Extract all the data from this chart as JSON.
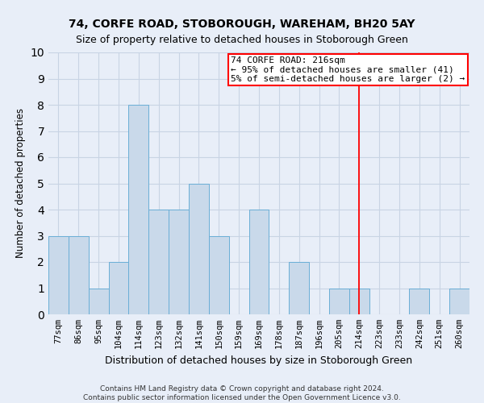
{
  "title1": "74, CORFE ROAD, STOBOROUGH, WAREHAM, BH20 5AY",
  "title2": "Size of property relative to detached houses in Stoborough Green",
  "xlabel": "Distribution of detached houses by size in Stoborough Green",
  "ylabel": "Number of detached properties",
  "categories": [
    "77sqm",
    "86sqm",
    "95sqm",
    "104sqm",
    "114sqm",
    "123sqm",
    "132sqm",
    "141sqm",
    "150sqm",
    "159sqm",
    "169sqm",
    "178sqm",
    "187sqm",
    "196sqm",
    "205sqm",
    "214sqm",
    "223sqm",
    "233sqm",
    "242sqm",
    "251sqm",
    "260sqm"
  ],
  "values": [
    3,
    3,
    1,
    2,
    8,
    4,
    4,
    5,
    3,
    0,
    4,
    0,
    2,
    0,
    1,
    1,
    0,
    0,
    1,
    0,
    1
  ],
  "bar_color": "#c9d9ea",
  "bar_edge_color": "#6aaed6",
  "grid_color": "#c8d4e4",
  "background_color": "#e8eef8",
  "vline_x_index": 15,
  "vline_color": "red",
  "annotation_line1": "74 CORFE ROAD: 216sqm",
  "annotation_line2": "← 95% of detached houses are smaller (41)",
  "annotation_line3": "5% of semi-detached houses are larger (2) →",
  "ylim": [
    0,
    10
  ],
  "yticks": [
    0,
    1,
    2,
    3,
    4,
    5,
    6,
    7,
    8,
    9,
    10
  ],
  "footnote": "Contains HM Land Registry data © Crown copyright and database right 2024.\nContains public sector information licensed under the Open Government Licence v3.0.",
  "title1_fontsize": 10,
  "title2_fontsize": 9,
  "xlabel_fontsize": 9,
  "ylabel_fontsize": 8.5,
  "tick_fontsize": 7.5,
  "annotation_fontsize": 8,
  "footnote_fontsize": 6.5
}
